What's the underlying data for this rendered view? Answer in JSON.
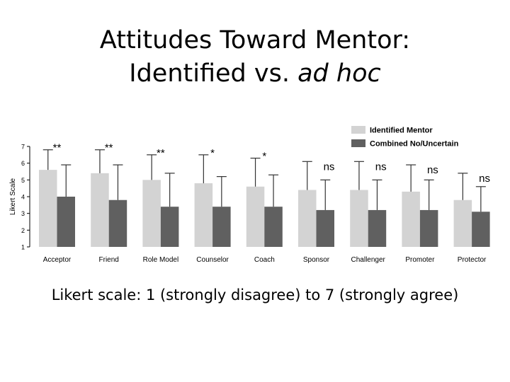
{
  "slide": {
    "title_line1": "Attitudes Toward Mentor:",
    "title_line2_prefix": "Identified vs. ",
    "title_line2_italic": "ad hoc",
    "subtitle": "Likert scale: 1 (strongly disagree) to 7 (strongly agree)"
  },
  "chart_data": {
    "type": "bar",
    "ylabel": "Likert Scale",
    "ylim": [
      1,
      7
    ],
    "yticks": [
      1,
      2,
      3,
      4,
      5,
      6,
      7
    ],
    "categories": [
      "Acceptor",
      "Friend",
      "Role Model",
      "Counselor",
      "Coach",
      "Sponsor",
      "Challenger",
      "Promoter",
      "Protector"
    ],
    "series": [
      {
        "name": "Identified Mentor",
        "color": "#d3d3d3",
        "values": [
          5.6,
          5.4,
          5.0,
          4.8,
          4.6,
          4.4,
          4.4,
          4.3,
          3.8
        ],
        "error": [
          1.2,
          1.4,
          1.5,
          1.7,
          1.7,
          1.7,
          1.7,
          1.6,
          1.6
        ]
      },
      {
        "name": "Combined No/Uncertain",
        "color": "#606060",
        "values": [
          4.0,
          3.8,
          3.4,
          3.4,
          3.4,
          3.2,
          3.2,
          3.2,
          3.1
        ],
        "error": [
          1.9,
          2.1,
          2.0,
          1.8,
          1.9,
          1.8,
          1.8,
          1.8,
          1.5
        ]
      }
    ],
    "significance": [
      "**",
      "**",
      "**",
      "*",
      "*",
      "ns",
      "ns",
      "ns",
      "ns"
    ],
    "legend_position": "top-right",
    "grid": false
  }
}
